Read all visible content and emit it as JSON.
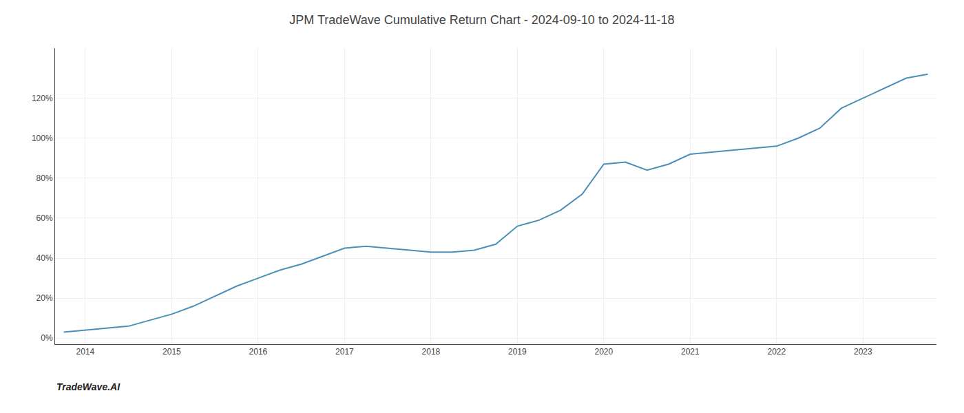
{
  "chart_data": {
    "type": "line",
    "title": "JPM TradeWave Cumulative Return Chart - 2024-09-10 to 2024-11-18",
    "annotations": [
      "TradeWave.AI"
    ],
    "x": [
      2013.75,
      2014.0,
      2014.25,
      2014.5,
      2014.75,
      2015.0,
      2015.25,
      2015.5,
      2015.75,
      2016.0,
      2016.25,
      2016.5,
      2016.75,
      2017.0,
      2017.25,
      2017.5,
      2017.75,
      2018.0,
      2018.25,
      2018.5,
      2018.75,
      2019.0,
      2019.25,
      2019.5,
      2019.75,
      2020.0,
      2020.25,
      2020.5,
      2020.75,
      2021.0,
      2021.25,
      2021.5,
      2021.75,
      2022.0,
      2022.25,
      2022.5,
      2022.75,
      2023.0,
      2023.25,
      2023.5,
      2023.75
    ],
    "values": [
      3,
      4,
      5,
      6,
      9,
      12,
      16,
      21,
      26,
      30,
      34,
      37,
      41,
      45,
      46,
      45,
      44,
      43,
      43,
      44,
      47,
      56,
      59,
      64,
      72,
      87,
      88,
      84,
      87,
      92,
      93,
      94,
      95,
      96,
      100,
      105,
      115,
      120,
      125,
      130,
      132
    ],
    "color": "#4a90b8",
    "xlim": [
      2013.65,
      2023.85
    ],
    "ylim": [
      -3,
      145
    ],
    "xticks": [
      2014,
      2015,
      2016,
      2017,
      2018,
      2019,
      2020,
      2021,
      2022,
      2023
    ],
    "yticks": [
      {
        "value": 0,
        "label": "0%"
      },
      {
        "value": 20,
        "label": "20%"
      },
      {
        "value": 40,
        "label": "40%"
      },
      {
        "value": 60,
        "label": "60%"
      },
      {
        "value": 80,
        "label": "80%"
      },
      {
        "value": 100,
        "label": "100%"
      },
      {
        "value": 120,
        "label": "120%"
      }
    ],
    "grid": true
  }
}
